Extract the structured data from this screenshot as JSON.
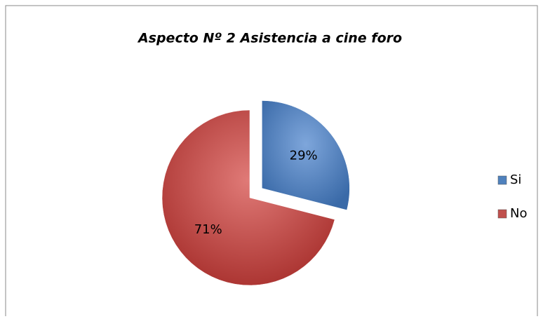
{
  "chart_data": {
    "type": "pie",
    "title": "Aspecto Nº 2 Asistencia a cine foro",
    "categories": [
      "Si",
      "No"
    ],
    "values": [
      29,
      71
    ],
    "value_labels": [
      "29%",
      "71%"
    ],
    "colors": [
      "#4f81bd",
      "#c0504d"
    ],
    "exploded": [
      true,
      false
    ],
    "legend": "right"
  }
}
